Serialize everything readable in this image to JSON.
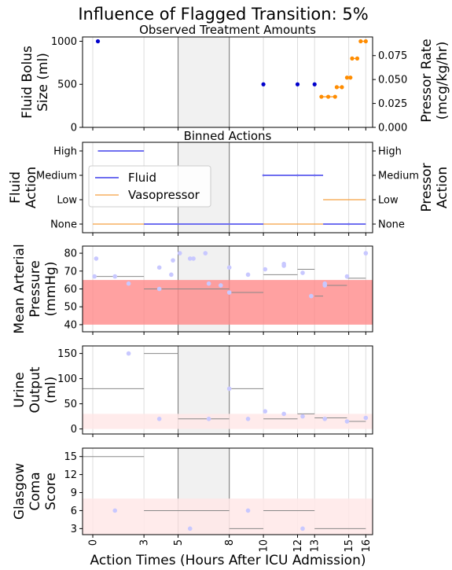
{
  "figure": {
    "title": "Influence of Flagged Transition: 5%",
    "xlabel": "Action Times (Hours After ICU Admission)",
    "xticks": [
      0,
      3,
      5,
      8,
      10,
      12,
      13,
      15,
      16
    ],
    "xlim": [
      -0.6,
      16.4
    ],
    "shaded_interval": [
      5,
      8
    ],
    "colors": {
      "fluid": "#0000cc",
      "pressor": "#ff8c00",
      "fluid_line": "#6f6ff0",
      "pressor_line": "#f5a040",
      "normal_band": "#ff8a8a",
      "light_band": "#ffe8e8",
      "obs_point": "#c8c8ff",
      "step": "#888888",
      "shade": "#dcdcdc"
    }
  },
  "chart_data": [
    {
      "type": "scatter",
      "title": "Observed Treatment Amounts",
      "ylabel": "Fluid Bolus Size (ml)",
      "ylim": [
        0,
        1050
      ],
      "yticks": [
        0,
        500,
        1000
      ],
      "ylabel_right": "Pressor Rate (mcg/kg/hr)",
      "ylim_right": [
        0,
        0.0945
      ],
      "yticks_right": [
        "0.000",
        "0.025",
        "0.050",
        "0.075"
      ],
      "series": [
        {
          "name": "Fluid",
          "points": [
            [
              0.3,
              1000
            ],
            [
              10,
              500
            ],
            [
              12,
              500
            ],
            [
              13,
              500
            ]
          ]
        },
        {
          "name": "Vasopressor",
          "points": [
            [
              13.4,
              0.032
            ],
            [
              13.8,
              0.032
            ],
            [
              14.2,
              0.032
            ],
            [
              14.3,
              0.042
            ],
            [
              14.6,
              0.042
            ],
            [
              14.9,
              0.052
            ],
            [
              15.1,
              0.052
            ],
            [
              15.2,
              0.072
            ],
            [
              15.5,
              0.072
            ],
            [
              15.7,
              0.09
            ],
            [
              16,
              0.09
            ]
          ]
        }
      ]
    },
    {
      "type": "line",
      "title": "Binned Actions",
      "ylabel": "Fluid Action",
      "ylabel_right": "Pressor Action",
      "categories": [
        "None",
        "Low",
        "Medium",
        "High"
      ],
      "series": [
        {
          "name": "Fluid",
          "segments": [
            [
              0.3,
              3,
              "High"
            ],
            [
              3,
              10,
              "None"
            ],
            [
              10,
              13.5,
              "Medium"
            ],
            [
              13.5,
              16,
              "None"
            ]
          ]
        },
        {
          "name": "Vasopressor",
          "segments": [
            [
              0,
              13.5,
              "None"
            ],
            [
              13.5,
              16,
              "Low"
            ]
          ]
        }
      ],
      "legend_position": "center-left"
    },
    {
      "type": "scatter",
      "ylabel": "Mean Arterial Pressure (mmHg)",
      "ylim": [
        36,
        84
      ],
      "yticks": [
        40,
        50,
        60,
        70,
        80
      ],
      "band": [
        40,
        65
      ],
      "points": [
        [
          0.1,
          67
        ],
        [
          0.2,
          77
        ],
        [
          1.3,
          67
        ],
        [
          2.1,
          63
        ],
        [
          3.9,
          60
        ],
        [
          3.9,
          72
        ],
        [
          4.6,
          68
        ],
        [
          4.7,
          76
        ],
        [
          5.1,
          80
        ],
        [
          5.7,
          77
        ],
        [
          5.9,
          77
        ],
        [
          6.6,
          80
        ],
        [
          6.8,
          63
        ],
        [
          7.5,
          62
        ],
        [
          8,
          58
        ],
        [
          8,
          72
        ],
        [
          9.1,
          68
        ],
        [
          10.1,
          71
        ],
        [
          11.2,
          74
        ],
        [
          11.2,
          73
        ],
        [
          12.3,
          69
        ],
        [
          12.8,
          56
        ],
        [
          13.6,
          63
        ],
        [
          13.6,
          62
        ],
        [
          14.9,
          67
        ],
        [
          16,
          80
        ]
      ],
      "steps": [
        [
          0,
          3,
          67
        ],
        [
          3,
          8,
          60
        ],
        [
          8,
          10,
          58
        ],
        [
          10,
          12,
          68
        ],
        [
          12,
          13,
          71
        ],
        [
          13,
          13.5,
          56
        ],
        [
          13.5,
          14.9,
          62
        ],
        [
          14.9,
          16,
          66
        ]
      ]
    },
    {
      "type": "scatter",
      "ylabel": "Urine Output (ml)",
      "ylim": [
        -10,
        165
      ],
      "yticks": [
        0,
        50,
        100,
        150
      ],
      "band": [
        0,
        30
      ],
      "points": [
        [
          2.1,
          150
        ],
        [
          3.9,
          20
        ],
        [
          6.8,
          20
        ],
        [
          8,
          80
        ],
        [
          9.1,
          20
        ],
        [
          10.1,
          35
        ],
        [
          11.2,
          30
        ],
        [
          12.3,
          25
        ],
        [
          13.6,
          20
        ],
        [
          14.9,
          15
        ],
        [
          16,
          22
        ]
      ],
      "steps": [
        [
          -0.6,
          3,
          80
        ],
        [
          3,
          5,
          150
        ],
        [
          5,
          8,
          20
        ],
        [
          8,
          10,
          80
        ],
        [
          10,
          12,
          20
        ],
        [
          12,
          13,
          30
        ],
        [
          13,
          14.9,
          22
        ],
        [
          14.9,
          16,
          15
        ]
      ]
    },
    {
      "type": "scatter",
      "ylabel": "Glasgow Coma Score",
      "ylim": [
        2,
        16.4
      ],
      "yticks": [
        3,
        6,
        9,
        12,
        15
      ],
      "band": [
        2,
        8
      ],
      "points": [
        [
          1.3,
          6
        ],
        [
          5.7,
          3
        ],
        [
          9.1,
          6
        ],
        [
          12.3,
          3
        ]
      ],
      "steps": [
        [
          -0.6,
          3,
          15
        ],
        [
          3,
          8,
          6
        ],
        [
          8,
          10,
          3
        ],
        [
          10,
          13,
          6
        ],
        [
          13,
          16,
          3
        ]
      ]
    }
  ]
}
